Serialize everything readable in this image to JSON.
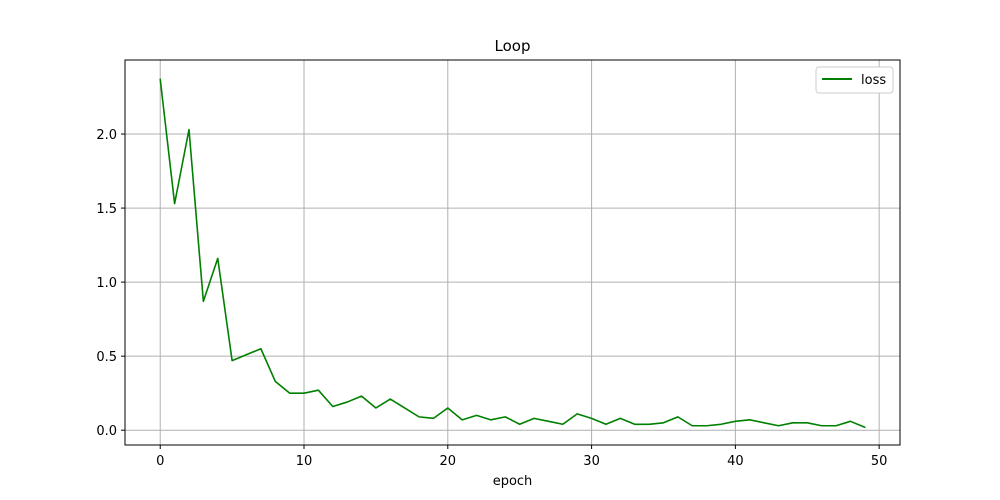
{
  "chart_data": {
    "type": "line",
    "title": "Loop",
    "xlabel": "epoch",
    "ylabel": "",
    "xlim": [
      -2.45,
      51.45
    ],
    "ylim": [
      -0.1,
      2.5
    ],
    "xticks": [
      0,
      10,
      20,
      30,
      40,
      50
    ],
    "yticks": [
      0.0,
      0.5,
      1.0,
      1.5,
      2.0
    ],
    "xtick_labels": [
      "0",
      "10",
      "20",
      "30",
      "40",
      "50"
    ],
    "ytick_labels": [
      "0.0",
      "0.5",
      "1.0",
      "1.5",
      "2.0"
    ],
    "grid": true,
    "legend_position": "top-right",
    "series": [
      {
        "name": "loss",
        "color": "#008000",
        "x": [
          0,
          1,
          2,
          3,
          4,
          5,
          6,
          7,
          8,
          9,
          10,
          11,
          12,
          13,
          14,
          15,
          16,
          17,
          18,
          19,
          20,
          21,
          22,
          23,
          24,
          25,
          26,
          27,
          28,
          29,
          30,
          31,
          32,
          33,
          34,
          35,
          36,
          37,
          38,
          39,
          40,
          41,
          42,
          43,
          44,
          45,
          46,
          47,
          48,
          49
        ],
        "values": [
          2.37,
          1.53,
          2.03,
          0.87,
          1.16,
          0.47,
          0.51,
          0.55,
          0.33,
          0.25,
          0.25,
          0.27,
          0.16,
          0.19,
          0.23,
          0.15,
          0.21,
          0.15,
          0.09,
          0.08,
          0.15,
          0.07,
          0.1,
          0.07,
          0.09,
          0.04,
          0.08,
          0.06,
          0.04,
          0.11,
          0.08,
          0.04,
          0.08,
          0.04,
          0.04,
          0.05,
          0.09,
          0.03,
          0.03,
          0.04,
          0.06,
          0.07,
          0.05,
          0.03,
          0.05,
          0.05,
          0.03,
          0.03,
          0.06,
          0.02
        ]
      }
    ]
  }
}
